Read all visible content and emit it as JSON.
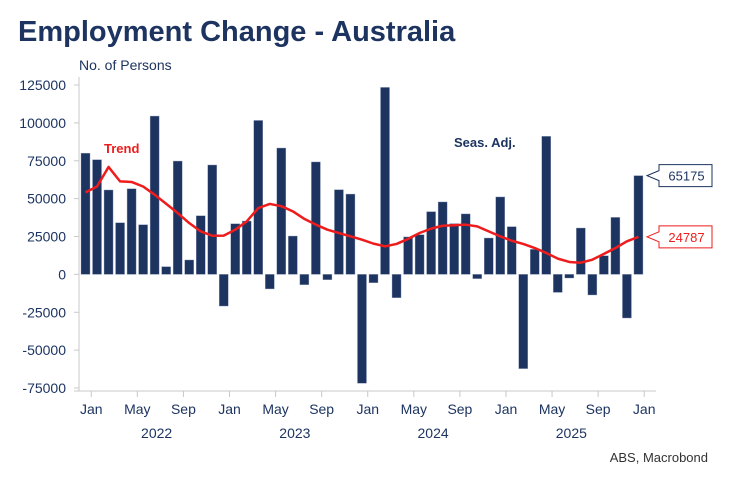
{
  "title": "Employment Change - Australia",
  "source": "ABS, Macrobond",
  "chart_data": {
    "type": "bar",
    "title": "Employment Change - Australia",
    "ylabel": "No. of Persons",
    "xlabel": "",
    "ylim": [
      -75000,
      125000
    ],
    "yticks": [
      125000,
      100000,
      75000,
      50000,
      25000,
      0,
      -25000,
      -50000,
      -75000
    ],
    "ytick_labels": [
      "125000",
      "100000",
      "75000",
      "50000",
      "25000",
      "0",
      "-25000",
      "-50000",
      "-75000"
    ],
    "xtick_labels": [
      "Jan",
      "May",
      "Sep",
      "Jan",
      "May",
      "Sep",
      "Jan",
      "May",
      "Sep",
      "Jan",
      "May",
      "Sep",
      "Jan"
    ],
    "xtick_dates": [
      "2022-01",
      "2022-05",
      "2022-09",
      "2023-01",
      "2023-05",
      "2023-09",
      "2024-01",
      "2024-05",
      "2024-09",
      "2025-01",
      "2025-05",
      "2025-09",
      "2026-01"
    ],
    "year_labels": [
      "2022",
      "2023",
      "2024",
      "2025"
    ],
    "grid": false,
    "categories": [
      "2021-12",
      "2022-01",
      "2022-02",
      "2022-03",
      "2022-04",
      "2022-05",
      "2022-06",
      "2022-07",
      "2022-08",
      "2022-09",
      "2022-10",
      "2022-11",
      "2022-12",
      "2023-01",
      "2023-02",
      "2023-03",
      "2023-04",
      "2023-05",
      "2023-06",
      "2023-07",
      "2023-08",
      "2023-09",
      "2023-10",
      "2023-11",
      "2023-12",
      "2024-01",
      "2024-02",
      "2024-03",
      "2024-04",
      "2024-05",
      "2024-06",
      "2024-07",
      "2024-08",
      "2024-09",
      "2024-10",
      "2024-11",
      "2024-12",
      "2025-01",
      "2025-02",
      "2025-03",
      "2025-04",
      "2025-05",
      "2025-06",
      "2025-07",
      "2025-08",
      "2025-09",
      "2025-10",
      "2025-11",
      "2025-12"
    ],
    "series": [
      {
        "name": "Seas. Adj.",
        "type": "bar",
        "color": "#1d3461",
        "values": [
          80000,
          75700,
          55700,
          34100,
          56500,
          32800,
          104500,
          5100,
          74800,
          9500,
          38700,
          72200,
          -20900,
          33400,
          35200,
          101600,
          -9600,
          83400,
          25300,
          -6800,
          74200,
          -3500,
          55900,
          53000,
          -71900,
          -5500,
          123400,
          -15400,
          24700,
          26200,
          41400,
          47800,
          33500,
          39900,
          -2800,
          24000,
          51100,
          31500,
          -62200,
          16500,
          91100,
          -11900,
          -2400,
          30600,
          -13600,
          12300,
          37600,
          -28800,
          65175
        ],
        "last_value_label": "65175"
      },
      {
        "name": "Trend",
        "type": "line",
        "color": "#ee1c1c",
        "values": [
          54100,
          58000,
          70900,
          61400,
          61000,
          58000,
          52600,
          46600,
          40500,
          33900,
          28400,
          25500,
          25600,
          29500,
          35000,
          43800,
          46500,
          45000,
          41600,
          36600,
          32800,
          29500,
          27300,
          25100,
          22900,
          20300,
          18500,
          20100,
          23400,
          27300,
          30200,
          32100,
          32400,
          32800,
          31700,
          28400,
          25100,
          22200,
          20100,
          17400,
          14100,
          10400,
          8200,
          7700,
          9700,
          13500,
          17400,
          21800,
          24787
        ],
        "last_value_label": "24787"
      }
    ]
  }
}
